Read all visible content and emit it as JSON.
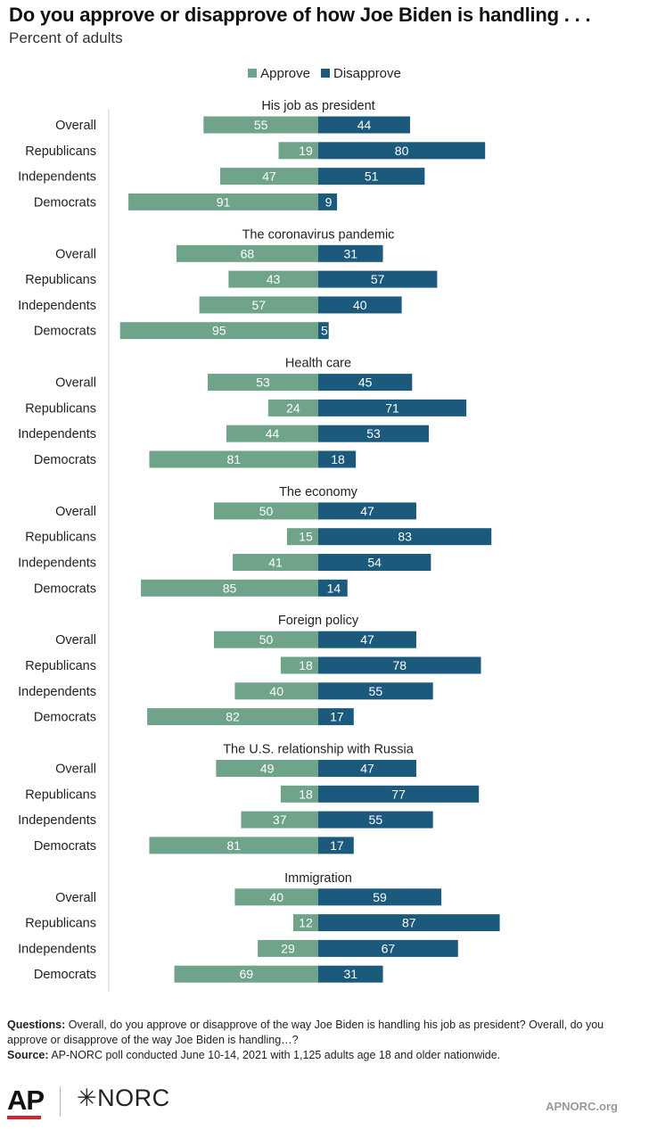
{
  "header": {
    "title": "Do you approve or disapprove of how Joe Biden is handling . . .",
    "subtitle": "Percent of adults"
  },
  "legend": [
    {
      "label": "Approve",
      "color": "#6fa38a"
    },
    {
      "label": "Disapprove",
      "color": "#1c5a7d"
    }
  ],
  "chart_data": {
    "type": "bar",
    "orientation": "horizontal-diverging",
    "colors": {
      "approve": "#6fa38a",
      "disapprove": "#1c5a7d"
    },
    "groups": [
      {
        "title": "His job as president",
        "rows": [
          {
            "label": "Overall",
            "approve": 55,
            "disapprove": 44
          },
          {
            "label": "Republicans",
            "approve": 19,
            "disapprove": 80
          },
          {
            "label": "Independents",
            "approve": 47,
            "disapprove": 51
          },
          {
            "label": "Democrats",
            "approve": 91,
            "disapprove": 9
          }
        ]
      },
      {
        "title": "The coronavirus pandemic",
        "rows": [
          {
            "label": "Overall",
            "approve": 68,
            "disapprove": 31
          },
          {
            "label": "Republicans",
            "approve": 43,
            "disapprove": 57
          },
          {
            "label": "Independents",
            "approve": 57,
            "disapprove": 40
          },
          {
            "label": "Democrats",
            "approve": 95,
            "disapprove": 5
          }
        ]
      },
      {
        "title": "Health care",
        "rows": [
          {
            "label": "Overall",
            "approve": 53,
            "disapprove": 45
          },
          {
            "label": "Republicans",
            "approve": 24,
            "disapprove": 71
          },
          {
            "label": "Independents",
            "approve": 44,
            "disapprove": 53
          },
          {
            "label": "Democrats",
            "approve": 81,
            "disapprove": 18
          }
        ]
      },
      {
        "title": "The economy",
        "rows": [
          {
            "label": "Overall",
            "approve": 50,
            "disapprove": 47
          },
          {
            "label": "Republicans",
            "approve": 15,
            "disapprove": 83
          },
          {
            "label": "Independents",
            "approve": 41,
            "disapprove": 54
          },
          {
            "label": "Democrats",
            "approve": 85,
            "disapprove": 14
          }
        ]
      },
      {
        "title": "Foreign policy",
        "rows": [
          {
            "label": "Overall",
            "approve": 50,
            "disapprove": 47
          },
          {
            "label": "Republicans",
            "approve": 18,
            "disapprove": 78
          },
          {
            "label": "Independents",
            "approve": 40,
            "disapprove": 55
          },
          {
            "label": "Democrats",
            "approve": 82,
            "disapprove": 17
          }
        ]
      },
      {
        "title": "The U.S. relationship with Russia",
        "rows": [
          {
            "label": "Overall",
            "approve": 49,
            "disapprove": 47
          },
          {
            "label": "Republicans",
            "approve": 18,
            "disapprove": 77
          },
          {
            "label": "Independents",
            "approve": 37,
            "disapprove": 55
          },
          {
            "label": "Democrats",
            "approve": 81,
            "disapprove": 17
          }
        ]
      },
      {
        "title": "Immigration",
        "rows": [
          {
            "label": "Overall",
            "approve": 40,
            "disapprove": 59
          },
          {
            "label": "Republicans",
            "approve": 12,
            "disapprove": 87
          },
          {
            "label": "Independents",
            "approve": 29,
            "disapprove": 67
          },
          {
            "label": "Democrats",
            "approve": 69,
            "disapprove": 31
          }
        ]
      }
    ]
  },
  "notes": {
    "questions_label": "Questions:",
    "questions_text": "Overall, do you approve or disapprove of the way Joe Biden is handling his job as president? Overall, do you approve or disapprove of the way Joe Biden is handling…?",
    "source_label": "Source:",
    "source_text": "AP-NORC poll conducted June 10-14, 2021 with 1,125 adults age 18 and older nationwide."
  },
  "footer": {
    "ap_logo": "AP",
    "norc_logo": "✳NORC",
    "site": "APNORC.org",
    "ap_accent_color": "#d9232e"
  }
}
